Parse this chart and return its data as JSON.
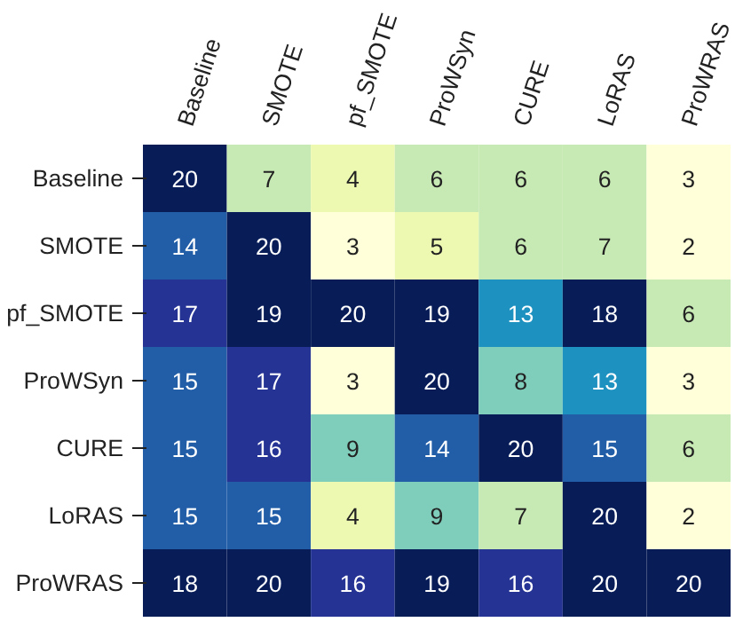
{
  "chart_data": {
    "type": "heatmap",
    "categories": [
      "Baseline",
      "SMOTE",
      "pf_SMOTE",
      "ProWSyn",
      "CURE",
      "LoRAS",
      "ProWRAS"
    ],
    "y_categories": [
      "Baseline",
      "SMOTE",
      "pf_SMOTE",
      "ProWSyn",
      "CURE",
      "LoRAS",
      "ProWRAS"
    ],
    "cells": [
      [
        20,
        7,
        4,
        6,
        6,
        6,
        3
      ],
      [
        14,
        20,
        3,
        5,
        6,
        7,
        2
      ],
      [
        17,
        19,
        20,
        19,
        13,
        18,
        6
      ],
      [
        15,
        17,
        3,
        20,
        8,
        13,
        3
      ],
      [
        15,
        16,
        9,
        14,
        20,
        15,
        6
      ],
      [
        15,
        15,
        4,
        9,
        7,
        20,
        2
      ],
      [
        18,
        20,
        16,
        19,
        16,
        20,
        20
      ]
    ],
    "data_labels": true
  }
}
